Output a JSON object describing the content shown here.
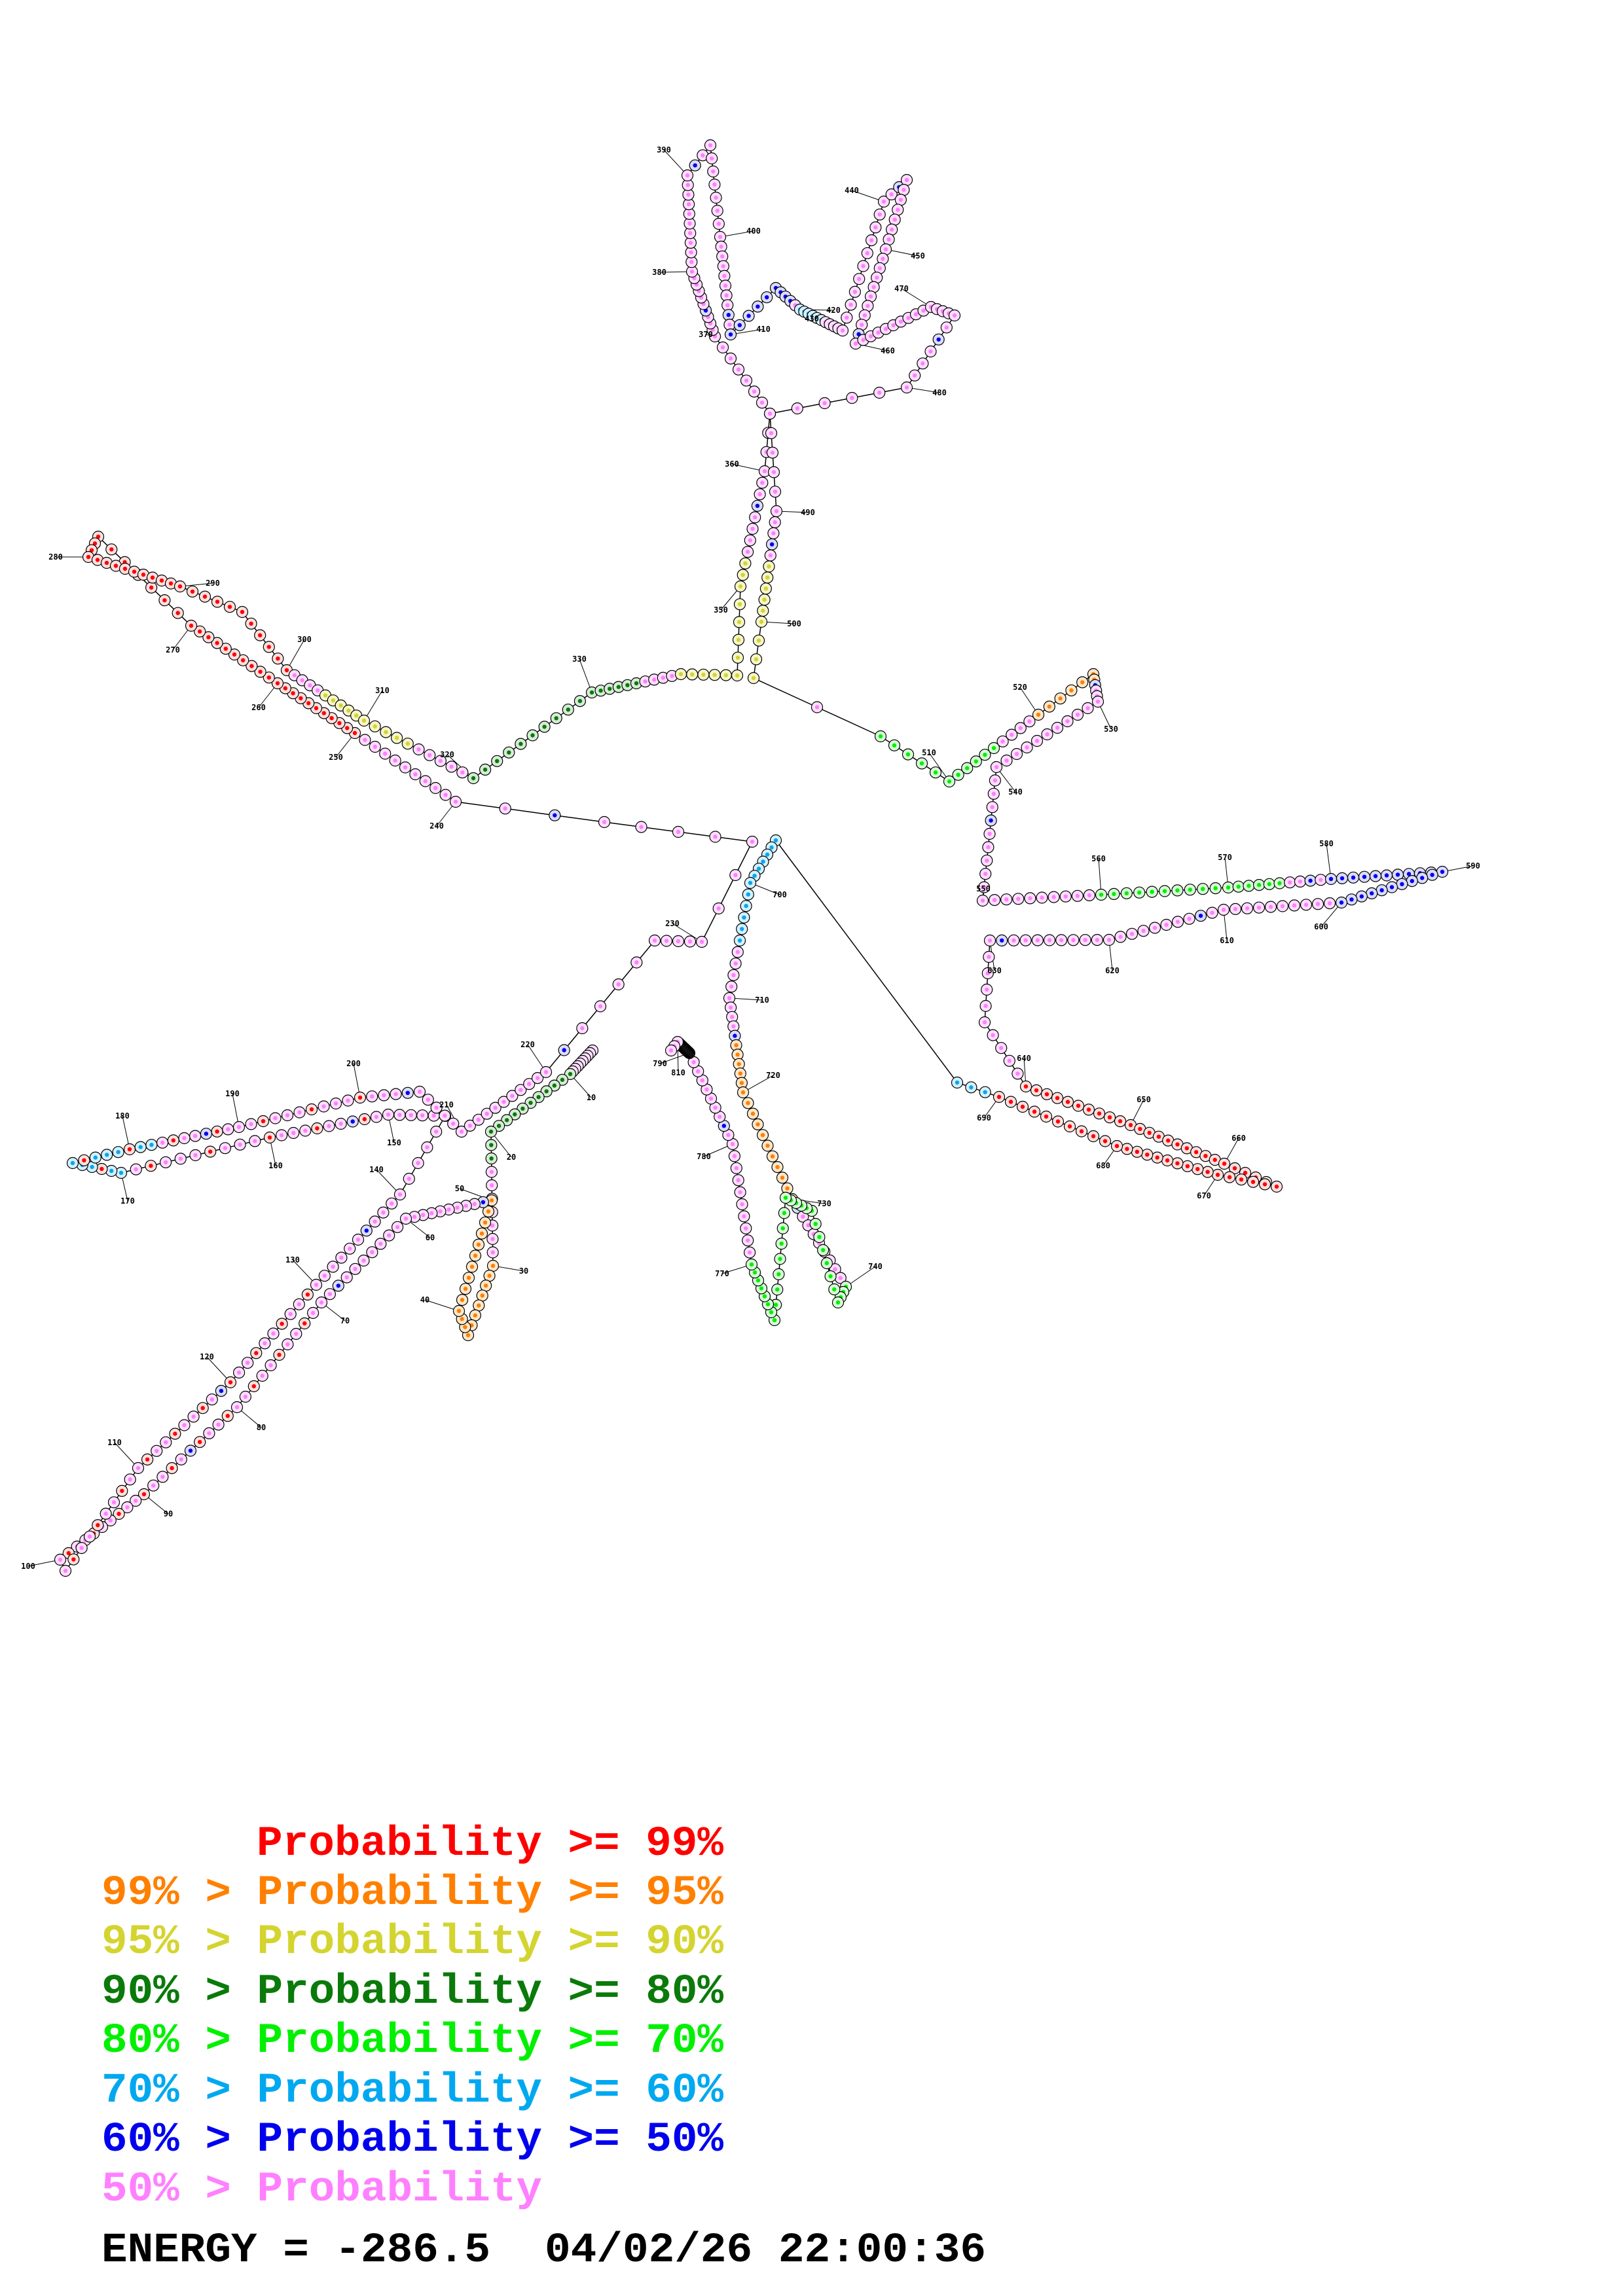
{
  "diagram": {
    "type": "RNA secondary structure (base-pair probability coloured)",
    "position_labels": [
      "10",
      "20",
      "30",
      "40",
      "50",
      "60",
      "70",
      "80",
      "90",
      "100",
      "110",
      "120",
      "130",
      "140",
      "150",
      "160",
      "170",
      "180",
      "190",
      "200",
      "210",
      "220",
      "230",
      "240",
      "250",
      "260",
      "270",
      "280",
      "290",
      "300",
      "310",
      "320",
      "330",
      "350",
      "360",
      "370",
      "380",
      "390",
      "400",
      "410",
      "420",
      "430",
      "440",
      "450",
      "460",
      "470",
      "480",
      "490",
      "500",
      "510",
      "520",
      "530",
      "540",
      "550",
      "560",
      "570",
      "580",
      "590",
      "600",
      "610",
      "620",
      "630",
      "640",
      "650",
      "660",
      "670",
      "680",
      "690",
      "700",
      "710",
      "720",
      "730",
      "740",
      "770",
      "780",
      "790",
      "810"
    ]
  },
  "legend": {
    "items": [
      {
        "text": "Probability >= 99%",
        "color": "#ff0000"
      },
      {
        "text": "99% > Probability >= 95%",
        "color": "#ff8000"
      },
      {
        "text": "95% > Probability >= 90%",
        "color": "#d4d430"
      },
      {
        "text": "90% > Probability >= 80%",
        "color": "#0a7a0a"
      },
      {
        "text": "80% > Probability >= 70%",
        "color": "#00f000"
      },
      {
        "text": "70% > Probability >= 60%",
        "color": "#00a8f0"
      },
      {
        "text": "60% > Probability >= 50%",
        "color": "#0000ee"
      },
      {
        "text": "50% > Probability",
        "color": "#ff80ff"
      }
    ]
  },
  "footer": {
    "energy": "ENERGY = -286.5",
    "timestamp": "04/02/26 22:00:36"
  }
}
